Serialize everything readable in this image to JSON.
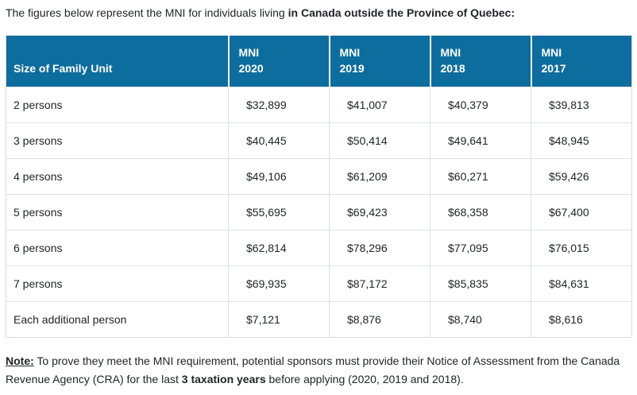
{
  "intro": {
    "prefix": "The figures below represent the MNI for individuals living ",
    "bold": "in Canada outside the Province of Quebec:"
  },
  "table": {
    "header": {
      "family_unit": "Size of Family Unit",
      "columns": [
        {
          "line1": "MNI",
          "line2": "2020"
        },
        {
          "line1": "MNI",
          "line2": "2019"
        },
        {
          "line1": "MNI",
          "line2": "2018"
        },
        {
          "line1": "MNI",
          "line2": "2017"
        }
      ]
    },
    "rows": [
      {
        "label": "2 persons",
        "values": [
          "$32,899",
          "$41,007",
          "$40,379",
          "$39,813"
        ]
      },
      {
        "label": "3 persons",
        "values": [
          "$40,445",
          "$50,414",
          "$49,641",
          "$48,945"
        ]
      },
      {
        "label": "4 persons",
        "values": [
          "$49,106",
          "$61,209",
          "$60,271",
          "$59,426"
        ]
      },
      {
        "label": "5 persons",
        "values": [
          "$55,695",
          "$69,423",
          "$68,358",
          "$67,400"
        ]
      },
      {
        "label": "6 persons",
        "values": [
          "$62,814",
          "$78,296",
          "$77,095",
          "$76,015"
        ]
      },
      {
        "label": "7 persons",
        "values": [
          "$69,935",
          "$87,172",
          "$85,835",
          "$84,631"
        ]
      },
      {
        "label": "Each additional person",
        "values": [
          "$7,121",
          "$8,876",
          "$8,740",
          "$8,616"
        ]
      }
    ]
  },
  "note": {
    "label": "Note:",
    "text1": " To prove they meet the MNI requirement, potential sponsors must provide their Notice of Assessment from the Canada Revenue Agency (CRA) for the last ",
    "bold": "3 taxation years",
    "text2": " before applying (2020, 2019 and 2018)."
  },
  "colors": {
    "header_background": "#0d6d9e",
    "header_text": "#ffffff",
    "row_border": "#dde0e3",
    "outer_border": "#d9dde0",
    "body_text": "#212529"
  }
}
